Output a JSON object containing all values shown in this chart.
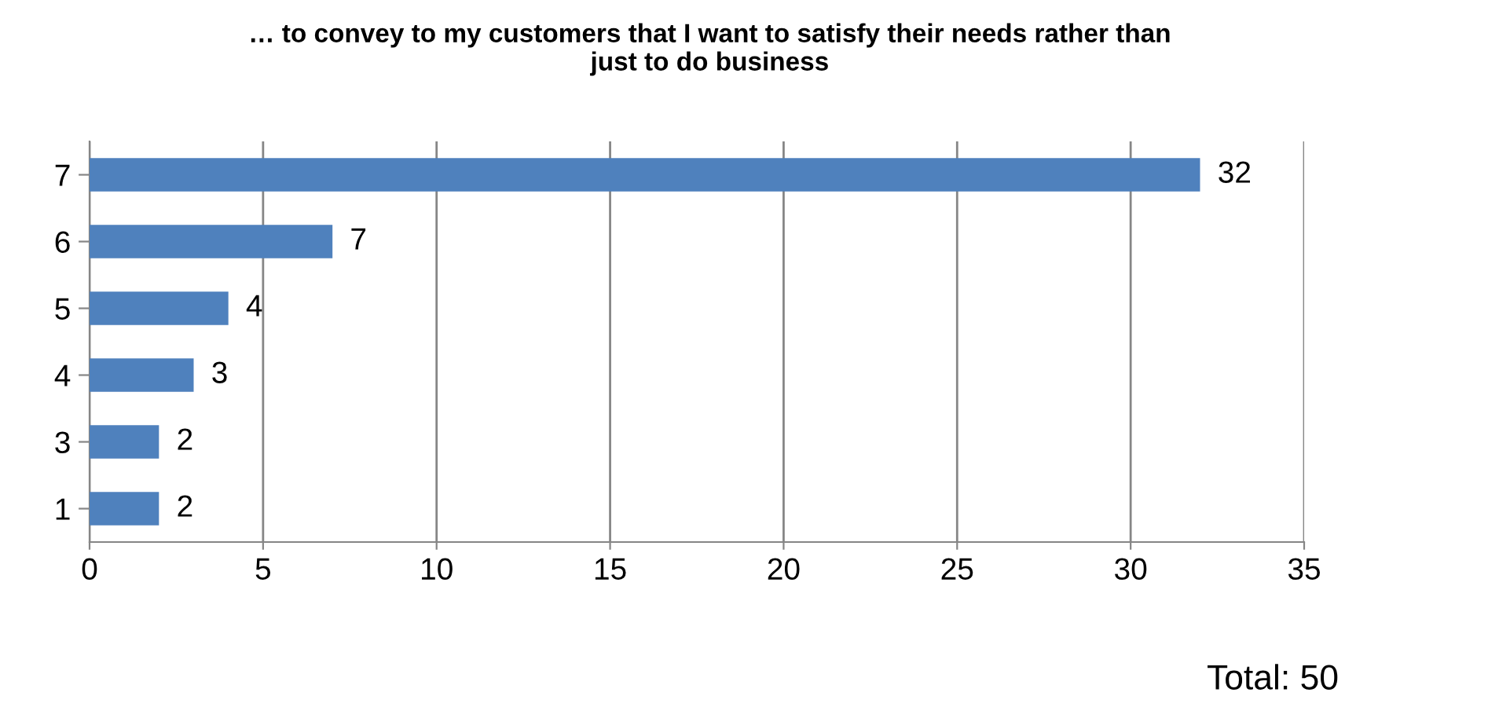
{
  "chart_data": {
    "type": "bar",
    "orientation": "horizontal",
    "title": "… to convey to my customers that I want to satisfy their needs rather than\njust to do business",
    "categories": [
      "7",
      "6",
      "5",
      "4",
      "3",
      "1"
    ],
    "values": [
      32,
      7,
      4,
      3,
      2,
      2
    ],
    "color": "#4f81bd",
    "xlim": [
      0,
      35
    ],
    "xticks": [
      0,
      5,
      10,
      15,
      20,
      25,
      30,
      35
    ],
    "grid": "x",
    "data_labels": true,
    "annotations": [
      "Total: 50"
    ]
  }
}
